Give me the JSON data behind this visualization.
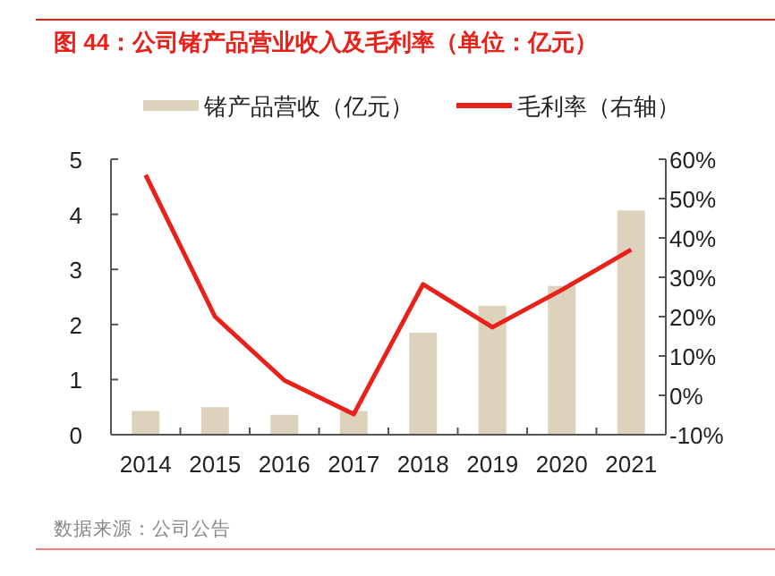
{
  "chart_data": {
    "type": "bar",
    "title": "图 44：公司锗产品营业收入及毛利率（单位：亿元）",
    "categories": [
      "2014",
      "2015",
      "2016",
      "2017",
      "2018",
      "2019",
      "2020",
      "2021"
    ],
    "series": [
      {
        "name": "锗产品营收（亿元）",
        "color": "#ddd3bc",
        "values": [
          0.43,
          0.5,
          0.36,
          0.43,
          1.85,
          2.34,
          2.7,
          4.07
        ]
      },
      {
        "name": "毛利率（右轴）",
        "type": "line",
        "axis": "y2",
        "color": "#e8221b",
        "values": [
          56,
          20,
          3.8,
          -4.8,
          28.2,
          17.3,
          26.8,
          37
        ]
      }
    ],
    "ylim": [
      0,
      5
    ],
    "yticks": [
      0,
      1,
      2,
      3,
      4,
      5
    ],
    "y2lim": [
      -10,
      60
    ],
    "y2ticks": [
      {
        "value": -10,
        "label": "-10%"
      },
      {
        "value": 0,
        "label": "0%"
      },
      {
        "value": 10,
        "label": "10%"
      },
      {
        "value": 20,
        "label": "20%"
      },
      {
        "value": 30,
        "label": "30%"
      },
      {
        "value": 40,
        "label": "40%"
      },
      {
        "value": 50,
        "label": "50%"
      },
      {
        "value": 60,
        "label": "60%"
      }
    ],
    "legend": "top",
    "annotations": [
      "数据来源：公司公告"
    ]
  }
}
